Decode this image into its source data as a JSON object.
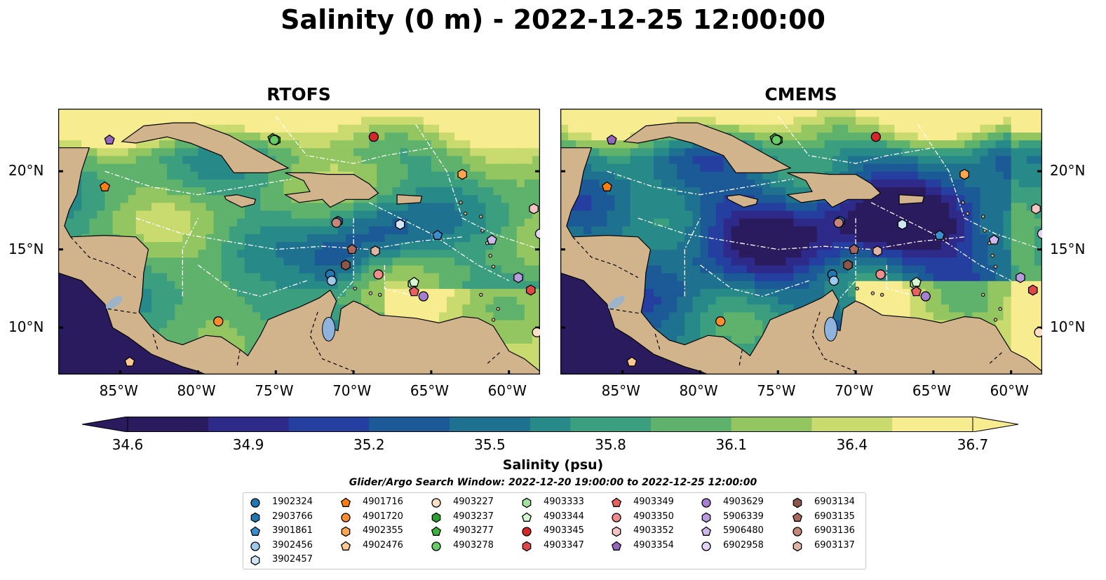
{
  "title": "Salinity (0 m) - 2022-12-25 12:00:00",
  "panels": [
    {
      "title": "RTOFS"
    },
    {
      "title": "CMEMS"
    }
  ],
  "axes": {
    "x_ticks": [
      "85°W",
      "80°W",
      "75°W",
      "70°W",
      "65°W",
      "60°W"
    ],
    "x_tick_values": [
      -85,
      -80,
      -75,
      -70,
      -65,
      -60
    ],
    "y_ticks": [
      "20°N",
      "15°N",
      "10°N"
    ],
    "y_tick_values": [
      20,
      15,
      10
    ],
    "lon_range": [
      -89,
      -58
    ],
    "lat_range": [
      7,
      24
    ]
  },
  "colorbar": {
    "label": "Salinity (psu)",
    "ticks": [
      "34.6",
      "34.9",
      "35.2",
      "35.5",
      "35.8",
      "36.1",
      "36.4",
      "36.7"
    ],
    "range": [
      34.6,
      36.7
    ],
    "colormap": "haline",
    "extend": "both",
    "colors": [
      "#2a1a5e",
      "#2d2a8a",
      "#243fa0",
      "#1b5a96",
      "#1e7290",
      "#278a88",
      "#3b9e7e",
      "#5fb26c",
      "#93c660",
      "#c9da6e",
      "#f8ec90"
    ]
  },
  "search_window": "Glider/Argo Search Window: 2022-12-20 19:00:00 to 2022-12-25 12:00:00",
  "legend": {
    "columns": [
      [
        {
          "id": "1902324",
          "marker": "circle",
          "color": "#1f77b4"
        },
        {
          "id": "2903766",
          "marker": "hexagon",
          "color": "#1f77b4"
        },
        {
          "id": "3901861",
          "marker": "pentagon",
          "color": "#3a8ed0"
        },
        {
          "id": "3902456",
          "marker": "circle",
          "color": "#9ec9ec"
        },
        {
          "id": "3902457",
          "marker": "hexagon",
          "color": "#cfe6f8"
        }
      ],
      [
        {
          "id": "4901716",
          "marker": "pentagon",
          "color": "#ff7f0e"
        },
        {
          "id": "4901720",
          "marker": "circle",
          "color": "#ff8c2e"
        },
        {
          "id": "4902355",
          "marker": "hexagon",
          "color": "#ffa64d"
        },
        {
          "id": "4902476",
          "marker": "pentagon",
          "color": "#ffc98f"
        }
      ],
      [
        {
          "id": "4903227",
          "marker": "circle",
          "color": "#ffe0c4"
        },
        {
          "id": "4903237",
          "marker": "hexagon",
          "color": "#2ca02c"
        },
        {
          "id": "4903277",
          "marker": "pentagon",
          "color": "#3cb33c"
        },
        {
          "id": "4903278",
          "marker": "circle",
          "color": "#66cc66"
        }
      ],
      [
        {
          "id": "4903333",
          "marker": "hexagon",
          "color": "#9fe39f"
        },
        {
          "id": "4903344",
          "marker": "pentagon",
          "color": "#d5f7d0"
        },
        {
          "id": "4903345",
          "marker": "circle",
          "color": "#d62728"
        },
        {
          "id": "4903347",
          "marker": "hexagon",
          "color": "#e04848"
        }
      ],
      [
        {
          "id": "4903349",
          "marker": "pentagon",
          "color": "#e86060"
        },
        {
          "id": "4903350",
          "marker": "circle",
          "color": "#f08c8c"
        },
        {
          "id": "4903352",
          "marker": "hexagon",
          "color": "#f7c4c4"
        },
        {
          "id": "4903354",
          "marker": "pentagon",
          "color": "#9467bd"
        }
      ],
      [
        {
          "id": "4903629",
          "marker": "circle",
          "color": "#a57fd0"
        },
        {
          "id": "5906339",
          "marker": "hexagon",
          "color": "#b99be0"
        },
        {
          "id": "5906480",
          "marker": "pentagon",
          "color": "#ceb9ec"
        },
        {
          "id": "6902958",
          "marker": "circle",
          "color": "#e3d4f6"
        }
      ],
      [
        {
          "id": "6903134",
          "marker": "hexagon",
          "color": "#8c564b"
        },
        {
          "id": "6903135",
          "marker": "pentagon",
          "color": "#a8685c"
        },
        {
          "id": "6903136",
          "marker": "circle",
          "color": "#c4877a"
        },
        {
          "id": "6903137",
          "marker": "hexagon",
          "color": "#dfb3a6"
        }
      ]
    ]
  },
  "chart_data": {
    "type": "heatmap",
    "title": "Salinity (0 m) - 2022-12-25 12:00:00",
    "subplots": [
      "RTOFS",
      "CMEMS"
    ],
    "xlabel": "",
    "ylabel": "",
    "colorbar_label": "Salinity (psu)",
    "zlim": [
      34.6,
      36.7
    ],
    "grid": false,
    "legend_position": "bottom-center",
    "observations": [
      {
        "id": "1902324",
        "lon": -71.5,
        "lat": 13.4
      },
      {
        "id": "2903766",
        "lon": -71.0,
        "lat": 16.8
      },
      {
        "id": "3901861",
        "lon": -64.6,
        "lat": 15.9
      },
      {
        "id": "3902456",
        "lon": -71.4,
        "lat": 13.0
      },
      {
        "id": "3902457",
        "lon": -67.0,
        "lat": 16.6
      },
      {
        "id": "4901716",
        "lon": -86.0,
        "lat": 19.0
      },
      {
        "id": "4901720",
        "lon": -78.7,
        "lat": 10.4
      },
      {
        "id": "4902355",
        "lon": -63.0,
        "lat": 19.8
      },
      {
        "id": "4902476",
        "lon": -84.4,
        "lat": 7.8
      },
      {
        "id": "4903227",
        "lon": -58.2,
        "lat": 9.7
      },
      {
        "id": "4903237",
        "lon": -75.0,
        "lat": 22.0
      },
      {
        "id": "4903277",
        "lon": -75.2,
        "lat": 22.1
      },
      {
        "id": "4903278",
        "lon": -75.1,
        "lat": 22.0
      },
      {
        "id": "4903333",
        "lon": -66.2,
        "lat": 12.8
      },
      {
        "id": "4903344",
        "lon": -66.1,
        "lat": 12.9
      },
      {
        "id": "4903345",
        "lon": -68.7,
        "lat": 22.2
      },
      {
        "id": "4903347",
        "lon": -58.6,
        "lat": 12.4
      },
      {
        "id": "4903349",
        "lon": -66.1,
        "lat": 12.3
      },
      {
        "id": "4903350",
        "lon": -68.4,
        "lat": 13.4
      },
      {
        "id": "4903352",
        "lon": -58.4,
        "lat": 17.6
      },
      {
        "id": "4903354",
        "lon": -85.7,
        "lat": 22.0
      },
      {
        "id": "4903629",
        "lon": -65.5,
        "lat": 12.0
      },
      {
        "id": "5906339",
        "lon": -59.4,
        "lat": 13.2
      },
      {
        "id": "5906480",
        "lon": -61.1,
        "lat": 15.6
      },
      {
        "id": "6902958",
        "lon": -58.0,
        "lat": 16.0
      },
      {
        "id": "6903134",
        "lon": -70.5,
        "lat": 14.0
      },
      {
        "id": "6903135",
        "lon": -70.1,
        "lat": 15.0
      },
      {
        "id": "6903136",
        "lon": -71.1,
        "lat": 16.7
      },
      {
        "id": "6903137",
        "lon": -68.6,
        "lat": 14.9
      }
    ]
  }
}
